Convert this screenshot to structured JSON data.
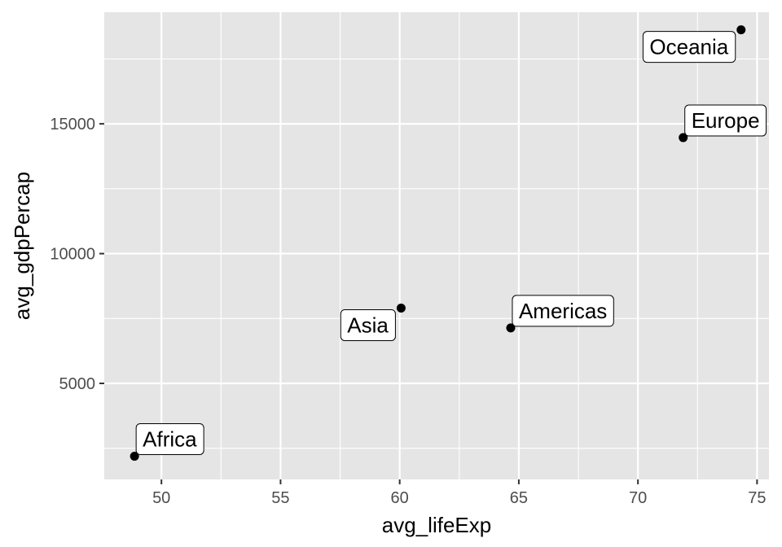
{
  "chart_data": {
    "type": "scatter",
    "xlabel": "avg_lifeExp",
    "ylabel": "avg_gdpPercap",
    "xlim": [
      47.6,
      75.5
    ],
    "ylim": [
      1300,
      19300
    ],
    "x_ticks": [
      50,
      55,
      60,
      65,
      70,
      75
    ],
    "y_ticks": [
      5000,
      10000,
      15000
    ],
    "grid": true,
    "legend": "none",
    "colors": {
      "panel": "#e5e5e5",
      "grid": "#ffffff",
      "point": "#000000",
      "label_bg": "#ffffff"
    },
    "points": [
      {
        "label": "Africa",
        "x": 48.87,
        "y": 2194,
        "label_side": "above-right"
      },
      {
        "label": "Asia",
        "x": 60.06,
        "y": 7902,
        "label_side": "below-left"
      },
      {
        "label": "Americas",
        "x": 64.66,
        "y": 7136,
        "label_side": "above-right"
      },
      {
        "label": "Europe",
        "x": 71.9,
        "y": 14469,
        "label_side": "above-right"
      },
      {
        "label": "Oceania",
        "x": 74.33,
        "y": 18622,
        "label_side": "below-left"
      }
    ]
  }
}
